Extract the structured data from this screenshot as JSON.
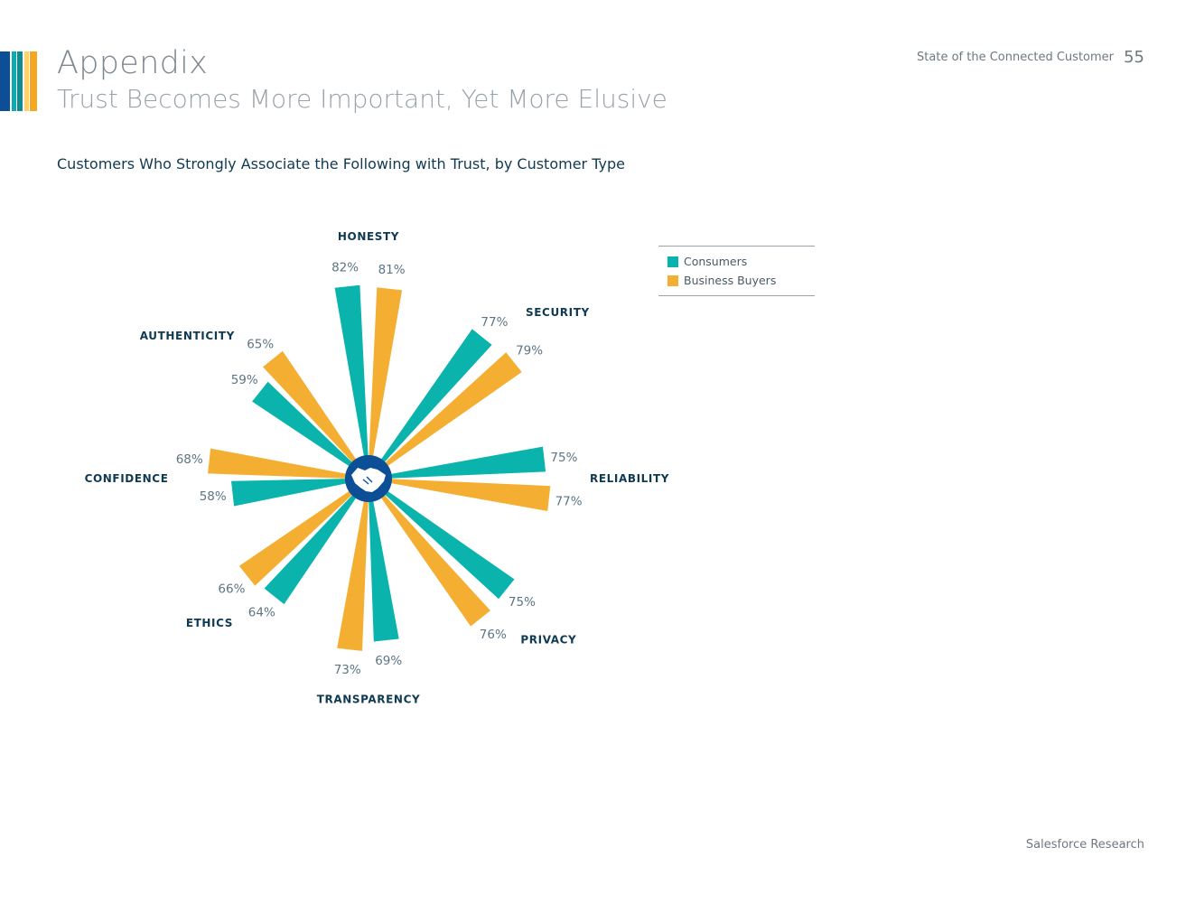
{
  "header": {
    "title": "Appendix",
    "subtitle": "Trust Becomes More Important, Yet More Elusive",
    "document_title": "State of the Connected Customer",
    "page_number": "55"
  },
  "footer": {
    "text": "Salesforce Research"
  },
  "brand_colors": [
    "#0c4f96",
    "#11a9b1",
    "#ffc53d",
    "#f4a820"
  ],
  "chart_data": {
    "type": "bar",
    "subtype": "radial",
    "title": "Customers Who Strongly Associate the Following with Trust, by Customer Type",
    "legend_position": "top-right",
    "center_icon": "handshake-icon",
    "categories": [
      "HONESTY",
      "SECURITY",
      "RELIABILITY",
      "PRIVACY",
      "TRANSPARENCY",
      "ETHICS",
      "CONFIDENCE",
      "AUTHENTICITY"
    ],
    "series": [
      {
        "name": "Consumers",
        "color": "#0bb3ad",
        "values": [
          82,
          77,
          75,
          75,
          69,
          64,
          58,
          59
        ]
      },
      {
        "name": "Business Buyers",
        "color": "#f4ae32",
        "values": [
          81,
          79,
          77,
          76,
          73,
          66,
          68,
          65
        ]
      }
    ],
    "value_suffix": "%"
  }
}
